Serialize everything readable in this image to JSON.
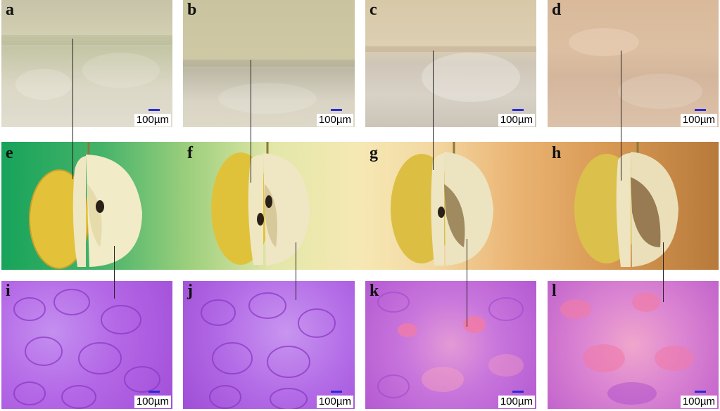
{
  "figure": {
    "panels": [
      {
        "id": "a",
        "label": "a",
        "scale": "100µm",
        "type": "micrograph-unstained"
      },
      {
        "id": "b",
        "label": "b",
        "scale": "100µm",
        "type": "micrograph-unstained"
      },
      {
        "id": "c",
        "label": "c",
        "scale": "100µm",
        "type": "micrograph-unstained"
      },
      {
        "id": "d",
        "label": "d",
        "scale": "100µm",
        "type": "micrograph-unstained"
      },
      {
        "id": "e",
        "label": "e",
        "type": "pear-photo"
      },
      {
        "id": "f",
        "label": "f",
        "type": "pear-photo"
      },
      {
        "id": "g",
        "label": "g",
        "type": "pear-photo"
      },
      {
        "id": "h",
        "label": "h",
        "type": "pear-photo"
      },
      {
        "id": "i",
        "label": "i",
        "scale": "100µm",
        "type": "micrograph-stained"
      },
      {
        "id": "j",
        "label": "j",
        "scale": "100µm",
        "type": "micrograph-stained"
      },
      {
        "id": "k",
        "label": "k",
        "scale": "100µm",
        "type": "micrograph-stained"
      },
      {
        "id": "l",
        "label": "l",
        "scale": "100µm",
        "type": "micrograph-stained"
      }
    ],
    "colors": {
      "band_green": "#17a35a",
      "band_pale": "#f6e8b4",
      "band_brown": "#b87a3a",
      "stain_purple": "#b35be0",
      "stain_pink": "#f07aa8",
      "scale_bar": "#2b2bd6"
    }
  }
}
